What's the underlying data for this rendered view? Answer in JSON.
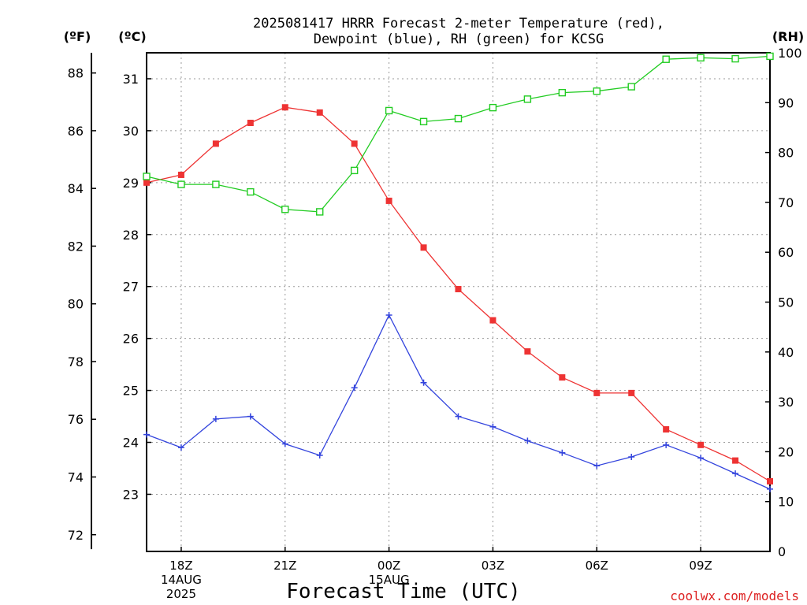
{
  "chart_data": {
    "type": "line",
    "title_line1": "2025081417 HRRR Forecast 2-meter Temperature (red),",
    "title_line2": "Dewpoint (blue), RH (green) for KCSG",
    "xlabel": "Forecast Time (UTC)",
    "credit": "coolwx.com/models",
    "axis_units": {
      "left_outer": "(ºF)",
      "left_inner": "(ºC)",
      "right": "(RH)"
    },
    "x_hours": [
      17,
      18,
      19,
      20,
      21,
      22,
      23,
      24,
      25,
      26,
      27,
      28,
      29,
      30,
      31,
      32,
      33,
      34,
      35
    ],
    "x_ticks": [
      {
        "hour": 18,
        "lines": [
          "18Z",
          "14AUG",
          "2025"
        ]
      },
      {
        "hour": 21,
        "lines": [
          "21Z"
        ]
      },
      {
        "hour": 24,
        "lines": [
          "00Z",
          "15AUG"
        ]
      },
      {
        "hour": 27,
        "lines": [
          "03Z"
        ]
      },
      {
        "hour": 30,
        "lines": [
          "06Z"
        ]
      },
      {
        "hour": 33,
        "lines": [
          "09Z"
        ]
      }
    ],
    "xlim": [
      17,
      35
    ],
    "ylim_celsius": [
      21.9,
      31.5
    ],
    "y_ticks_celsius": [
      "23",
      "24",
      "25",
      "26",
      "27",
      "28",
      "29",
      "30",
      "31"
    ],
    "y_ticks_fahrenheit": [
      "72",
      "74",
      "76",
      "78",
      "80",
      "82",
      "84",
      "86",
      "88"
    ],
    "ylim_rh": [
      0,
      100
    ],
    "y_ticks_rh": [
      "0",
      "10",
      "20",
      "30",
      "40",
      "50",
      "60",
      "70",
      "80",
      "90",
      "100"
    ],
    "grid": true,
    "colors": {
      "temperature": "#ee3333",
      "dewpoint": "#3344dd",
      "rh": "#22cc22"
    },
    "series": [
      {
        "name": "Temperature",
        "axis": "celsius",
        "marker": "filled-square",
        "values": [
          29.0,
          29.15,
          29.75,
          30.15,
          30.45,
          30.35,
          29.75,
          28.65,
          27.75,
          26.95,
          26.35,
          25.75,
          25.25,
          24.95,
          24.95,
          24.25,
          23.95,
          23.65,
          23.25
        ]
      },
      {
        "name": "Dewpoint",
        "axis": "celsius",
        "marker": "plus",
        "values": [
          24.15,
          23.9,
          24.45,
          24.5,
          23.97,
          23.75,
          25.05,
          26.45,
          25.15,
          24.5,
          24.3,
          24.03,
          23.8,
          23.55,
          23.72,
          23.95,
          23.7,
          23.4,
          23.1
        ]
      },
      {
        "name": "RH",
        "axis": "rh",
        "marker": "open-square",
        "values": [
          75.2,
          73.6,
          73.6,
          72.1,
          68.6,
          68.1,
          76.4,
          88.4,
          86.2,
          86.8,
          89.0,
          90.7,
          92.0,
          92.3,
          93.2,
          98.7,
          99.0,
          98.8,
          99.3
        ]
      }
    ]
  }
}
